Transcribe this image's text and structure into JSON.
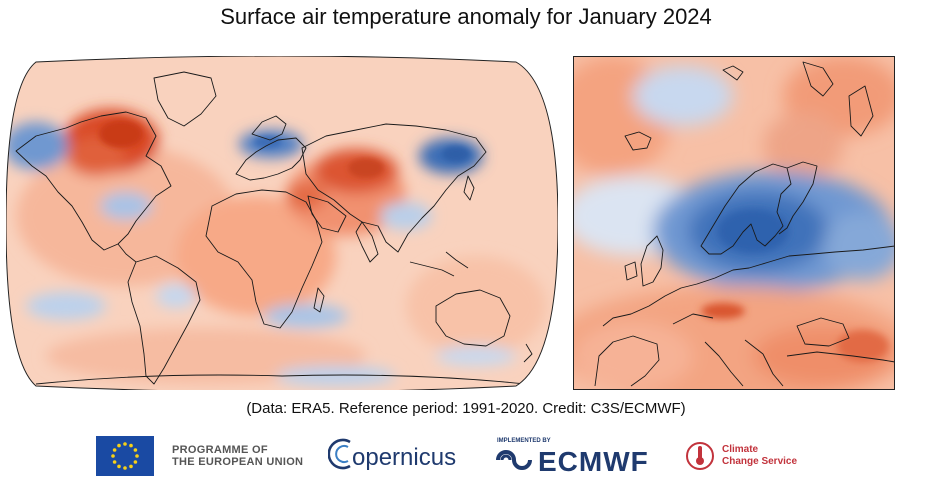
{
  "title": "Surface air temperature anomaly for January 2024",
  "credit": "(Data: ERA5.  Reference period: 1991-2020.  Credit: C3S/ECMWF)",
  "maps": {
    "world": {
      "region": "global",
      "projection": "robinson"
    },
    "europe": {
      "region": "europe"
    }
  },
  "anomaly_colors": {
    "warm_strong": "#d7421c",
    "warm": "#f39a79",
    "warm_light": "#fbd3c1",
    "neutral": "#f7f2ee",
    "cool_light": "#c4d6ee",
    "cool": "#7ea6d8",
    "cool_strong": "#3569b5"
  },
  "logos": {
    "eu_line1": "PROGRAMME OF",
    "eu_line2": "THE EUROPEAN UNION",
    "copernicus": "opernicus",
    "implemented_by": "IMPLEMENTED BY",
    "ecmwf": "ECMWF",
    "c3s_line1": "Climate",
    "c3s_line2": "Change Service"
  }
}
